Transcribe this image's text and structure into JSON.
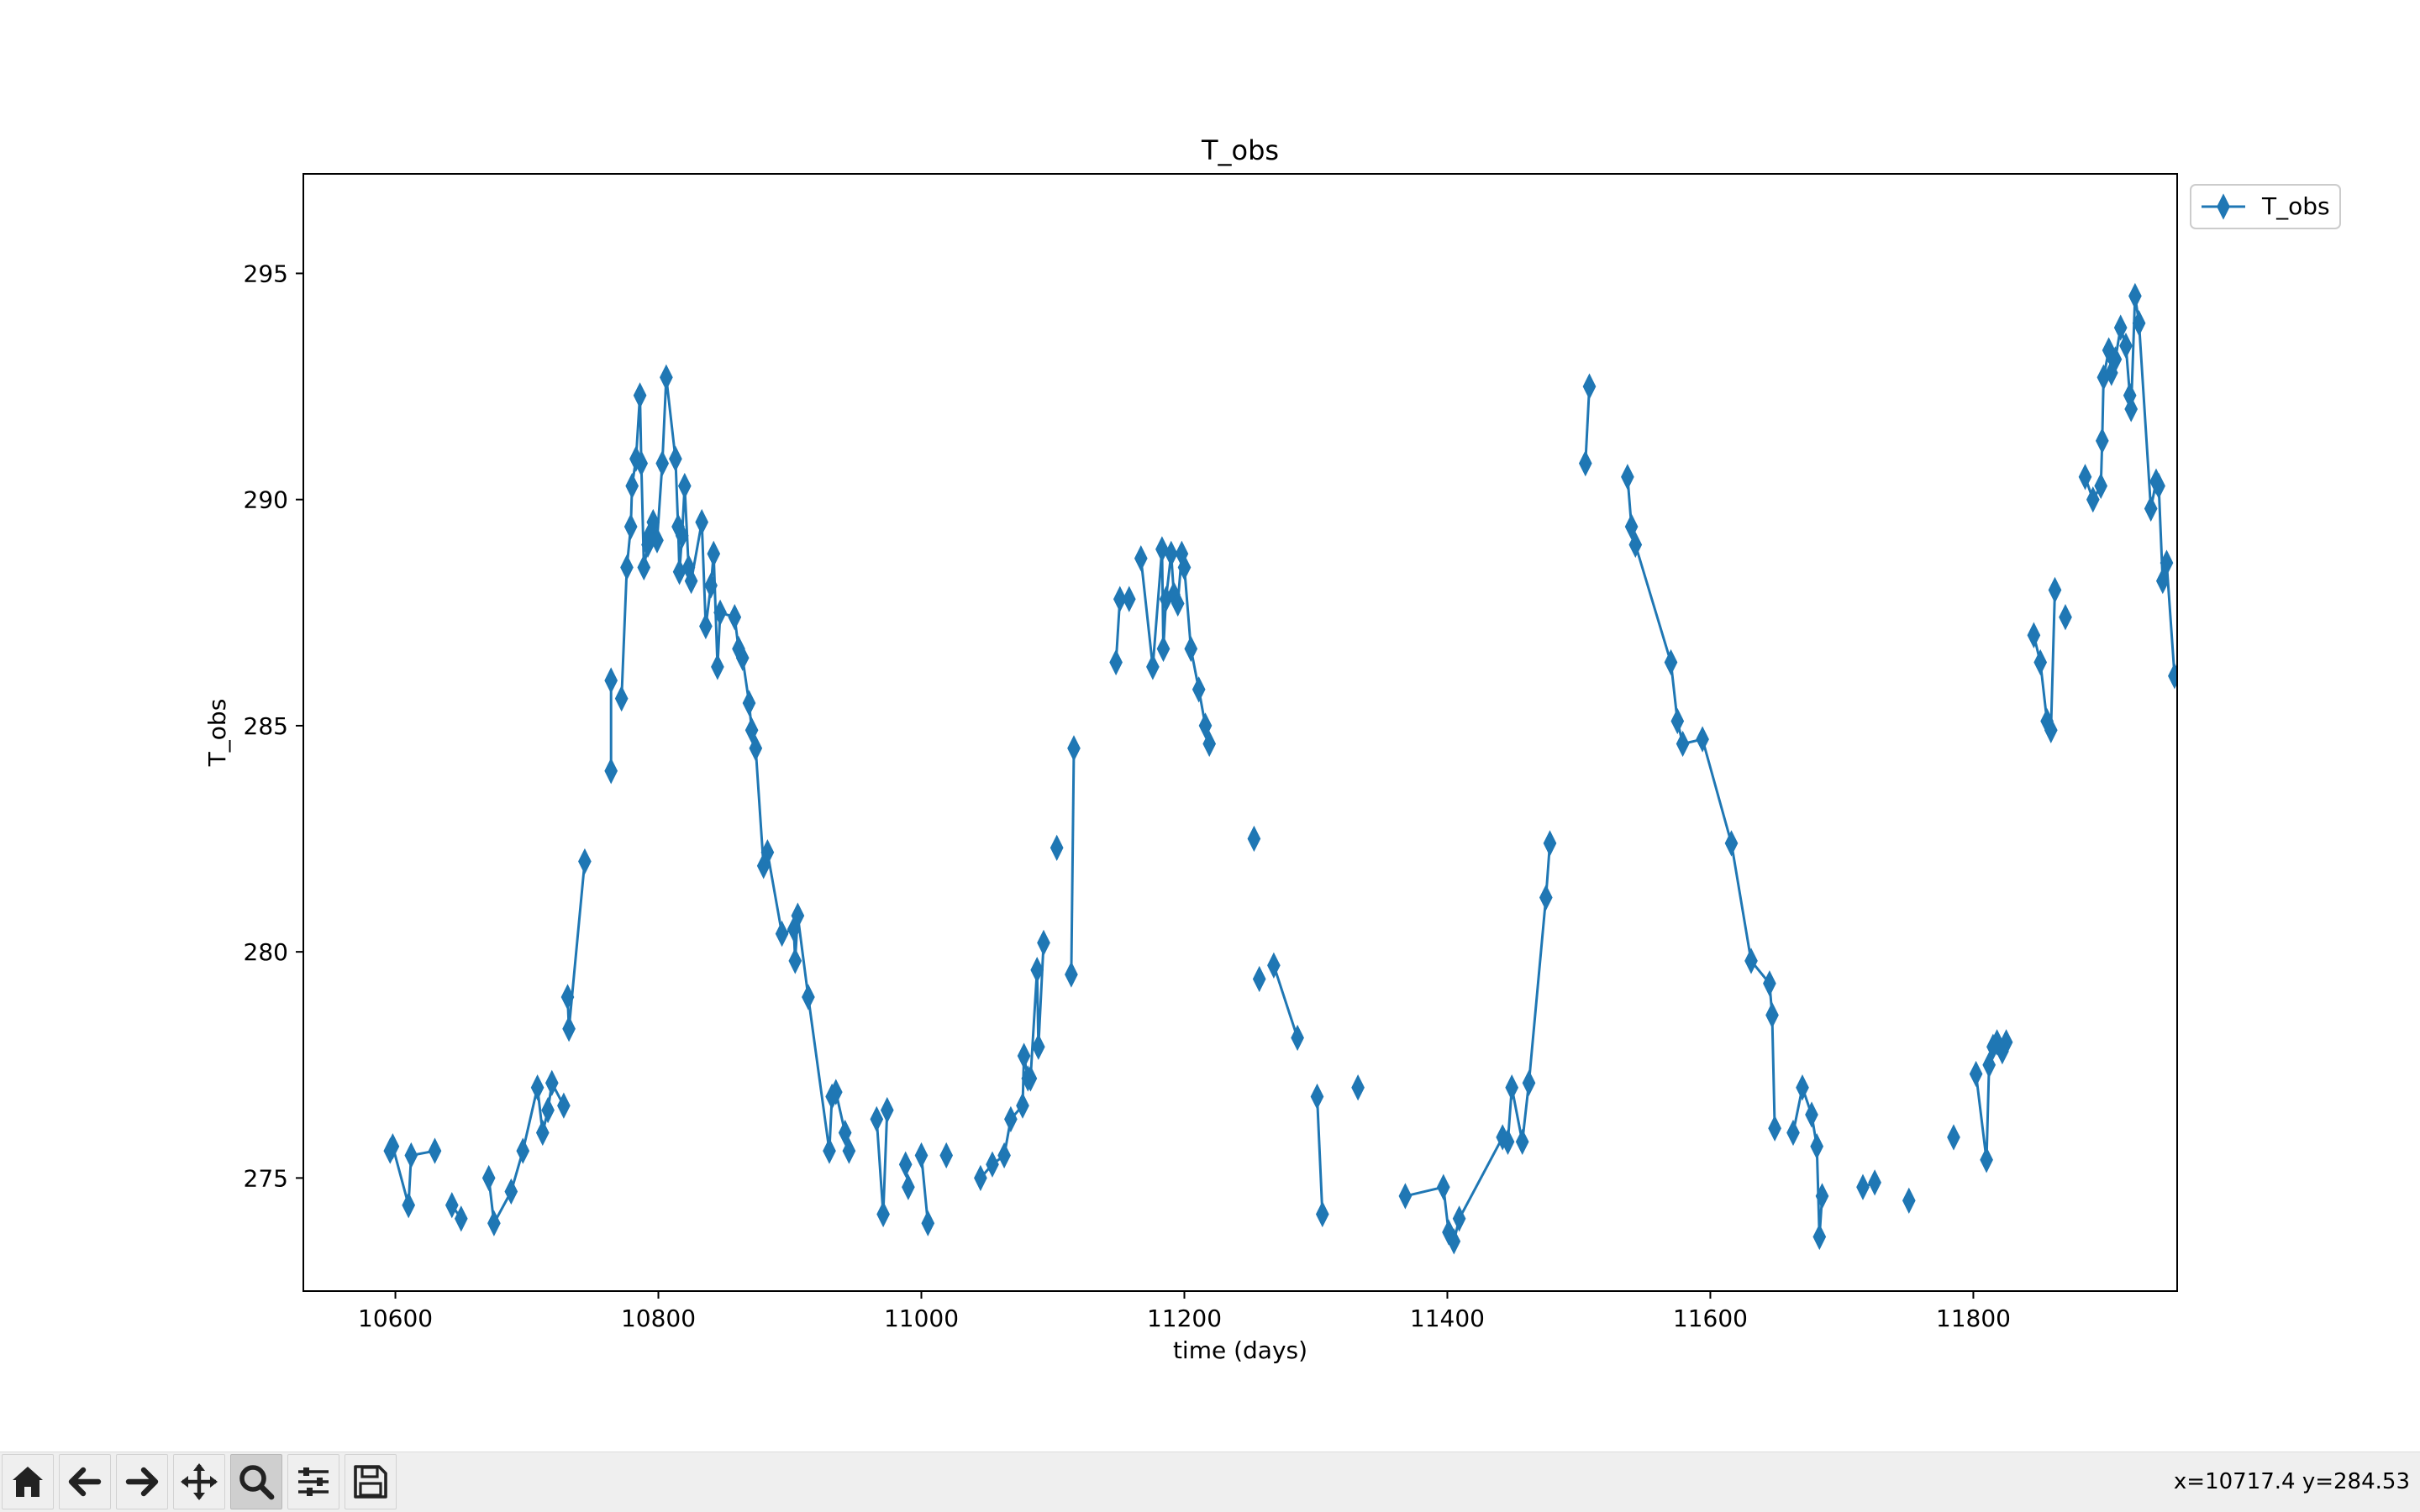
{
  "chart_data": {
    "type": "line",
    "title": "T_obs",
    "xlabel": "time (days)",
    "ylabel": "T_obs",
    "xlim": [
      10530,
      11955
    ],
    "ylim": [
      272.5,
      297.2
    ],
    "xticks": [
      10600,
      10800,
      11000,
      11200,
      11400,
      11600,
      11800
    ],
    "yticks": [
      275,
      280,
      285,
      290,
      295
    ],
    "legend": {
      "position": "outside-top-right",
      "entries": [
        "T_obs"
      ]
    },
    "grid": false,
    "series": [
      {
        "name": "T_obs",
        "color": "#1f77b4",
        "marker": "thin_diamond",
        "segments": [
          [
            [
              10596,
              275.6
            ],
            [
              10598,
              275.7
            ],
            [
              10610,
              274.4
            ],
            [
              10612,
              275.5
            ],
            [
              10630,
              275.6
            ]
          ],
          [
            [
              10643,
              274.4
            ],
            [
              10650,
              274.1
            ]
          ],
          [
            [
              10671,
              275.0
            ],
            [
              10675,
              274.0
            ],
            [
              10688,
              274.7
            ],
            [
              10697,
              275.6
            ],
            [
              10708,
              277.0
            ],
            [
              10712,
              276.0
            ],
            [
              10716,
              276.5
            ],
            [
              10719,
              277.1
            ],
            [
              10728,
              276.6
            ]
          ],
          [
            [
              10731,
              279.0
            ],
            [
              10732,
              278.3
            ],
            [
              10744,
              282.0
            ]
          ],
          [
            [
              10764,
              286.0
            ],
            [
              10764,
              284.0
            ]
          ],
          [
            [
              10772,
              285.6
            ],
            [
              10776,
              288.5
            ],
            [
              10779,
              289.4
            ],
            [
              10780,
              290.3
            ],
            [
              10783,
              290.9
            ],
            [
              10786,
              292.3
            ],
            [
              10787,
              290.8
            ],
            [
              10789,
              288.5
            ],
            [
              10792,
              289.0
            ],
            [
              10793,
              289.2
            ],
            [
              10796,
              289.5
            ],
            [
              10799,
              289.1
            ],
            [
              10803,
              290.8
            ],
            [
              10806,
              292.7
            ],
            [
              10813,
              290.9
            ],
            [
              10815,
              289.4
            ],
            [
              10816,
              288.4
            ],
            [
              10818,
              289.2
            ],
            [
              10820,
              290.3
            ],
            [
              10823,
              288.5
            ],
            [
              10825,
              288.2
            ],
            [
              10833,
              289.5
            ],
            [
              10836,
              287.2
            ],
            [
              10840,
              288.1
            ],
            [
              10842,
              288.8
            ],
            [
              10845,
              286.3
            ],
            [
              10847,
              287.5
            ],
            [
              10858,
              287.4
            ],
            [
              10861,
              286.7
            ],
            [
              10864,
              286.5
            ],
            [
              10869,
              285.5
            ],
            [
              10871,
              284.9
            ],
            [
              10874,
              284.5
            ],
            [
              10880,
              281.9
            ],
            [
              10883,
              282.2
            ],
            [
              10894,
              280.4
            ],
            [
              10903,
              280.5
            ],
            [
              10904,
              279.8
            ],
            [
              10906,
              280.8
            ],
            [
              10914,
              279.0
            ],
            [
              10930,
              275.6
            ],
            [
              10932,
              276.8
            ],
            [
              10935,
              276.9
            ],
            [
              10942,
              276.0
            ],
            [
              10945,
              275.6
            ]
          ],
          [
            [
              10966,
              276.3
            ],
            [
              10971,
              274.2
            ],
            [
              10974,
              276.5
            ]
          ],
          [
            [
              10988,
              275.3
            ],
            [
              10990,
              274.8
            ]
          ],
          [
            [
              11000,
              275.5
            ],
            [
              11005,
              274.0
            ]
          ],
          [
            [
              11019,
              275.5
            ]
          ],
          [
            [
              11045,
              275.0
            ],
            [
              11054,
              275.3
            ],
            [
              11063,
              275.5
            ],
            [
              11068,
              276.3
            ],
            [
              11077,
              276.6
            ],
            [
              11078,
              277.7
            ],
            [
              11081,
              277.2
            ],
            [
              11083,
              277.2
            ],
            [
              11088,
              279.6
            ],
            [
              11089,
              277.9
            ],
            [
              11093,
              280.2
            ]
          ],
          [
            [
              11103,
              282.3
            ]
          ],
          [
            [
              11114,
              279.5
            ],
            [
              11116,
              284.5
            ]
          ],
          [
            [
              11148,
              286.4
            ],
            [
              11151,
              287.8
            ],
            [
              11158,
              287.8
            ]
          ],
          [
            [
              11167,
              288.7
            ],
            [
              11176,
              286.3
            ],
            [
              11183,
              288.9
            ],
            [
              11184,
              286.7
            ],
            [
              11186,
              287.8
            ],
            [
              11190,
              288.8
            ],
            [
              11192,
              287.9
            ],
            [
              11195,
              287.7
            ],
            [
              11198,
              288.8
            ],
            [
              11200,
              288.5
            ],
            [
              11205,
              286.7
            ],
            [
              11211,
              285.8
            ],
            [
              11216,
              285.0
            ],
            [
              11219,
              284.6
            ]
          ],
          [
            [
              11253,
              282.5
            ]
          ],
          [
            [
              11257,
              279.4
            ]
          ],
          [
            [
              11268,
              279.7
            ],
            [
              11286,
              278.1
            ]
          ],
          [
            [
              11301,
              276.8
            ],
            [
              11305,
              274.2
            ]
          ],
          [
            [
              11332,
              277.0
            ]
          ],
          [
            [
              11368,
              274.6
            ],
            [
              11397,
              274.8
            ],
            [
              11401,
              273.8
            ],
            [
              11405,
              273.6
            ],
            [
              11409,
              274.1
            ],
            [
              11442,
              275.9
            ],
            [
              11446,
              275.8
            ],
            [
              11449,
              277.0
            ],
            [
              11457,
              275.8
            ],
            [
              11462,
              277.1
            ],
            [
              11475,
              281.2
            ],
            [
              11478,
              282.4
            ]
          ],
          [
            [
              11505,
              290.8
            ],
            [
              11508,
              292.5
            ]
          ],
          [
            [
              11537,
              290.5
            ],
            [
              11540,
              289.4
            ],
            [
              11543,
              289.0
            ],
            [
              11570,
              286.4
            ],
            [
              11575,
              285.1
            ],
            [
              11579,
              284.6
            ],
            [
              11594,
              284.7
            ],
            [
              11616,
              282.4
            ],
            [
              11631,
              279.8
            ],
            [
              11645,
              279.3
            ],
            [
              11647,
              278.6
            ],
            [
              11649,
              276.1
            ]
          ],
          [
            [
              11663,
              276.0
            ],
            [
              11670,
              277.0
            ],
            [
              11677,
              276.4
            ],
            [
              11681,
              275.7
            ],
            [
              11683,
              273.7
            ],
            [
              11685,
              274.6
            ]
          ],
          [
            [
              11716,
              274.8
            ],
            [
              11725,
              274.9
            ]
          ],
          [
            [
              11751,
              274.5
            ]
          ],
          [
            [
              11785,
              275.9
            ]
          ],
          [
            [
              11802,
              277.3
            ],
            [
              11810,
              275.4
            ],
            [
              11812,
              277.5
            ],
            [
              11815,
              277.9
            ],
            [
              11818,
              278.0
            ],
            [
              11822,
              277.8
            ],
            [
              11825,
              278.0
            ]
          ],
          [
            [
              11846,
              287.0
            ],
            [
              11851,
              286.4
            ],
            [
              11856,
              285.1
            ],
            [
              11859,
              284.9
            ],
            [
              11862,
              288.0
            ]
          ],
          [
            [
              11870,
              287.4
            ]
          ],
          [
            [
              11885,
              290.5
            ],
            [
              11891,
              290.0
            ],
            [
              11897,
              290.3
            ],
            [
              11898,
              291.3
            ],
            [
              11899,
              292.7
            ],
            [
              11903,
              293.3
            ],
            [
              11905,
              292.8
            ],
            [
              11908,
              293.1
            ],
            [
              11912,
              293.8
            ],
            [
              11916,
              293.4
            ],
            [
              11919,
              292.3
            ],
            [
              11920,
              292.0
            ],
            [
              11923,
              294.5
            ],
            [
              11926,
              293.9
            ],
            [
              11935,
              289.8
            ],
            [
              11939,
              290.4
            ],
            [
              11941,
              290.3
            ],
            [
              11944,
              288.2
            ],
            [
              11947,
              288.6
            ],
            [
              11953,
              286.1
            ]
          ]
        ]
      }
    ]
  },
  "toolbar": {
    "buttons": [
      {
        "name": "home-button",
        "icon": "home-icon"
      },
      {
        "name": "back-button",
        "icon": "arrow-left-icon"
      },
      {
        "name": "forward-button",
        "icon": "arrow-right-icon"
      },
      {
        "name": "pan-button",
        "icon": "move-icon"
      },
      {
        "name": "zoom-button",
        "icon": "magnifier-icon",
        "active": true
      },
      {
        "name": "configure-subplots-button",
        "icon": "sliders-icon"
      },
      {
        "name": "save-button",
        "icon": "floppy-disk-icon"
      }
    ],
    "coords": "x=10717.4 y=284.53"
  }
}
